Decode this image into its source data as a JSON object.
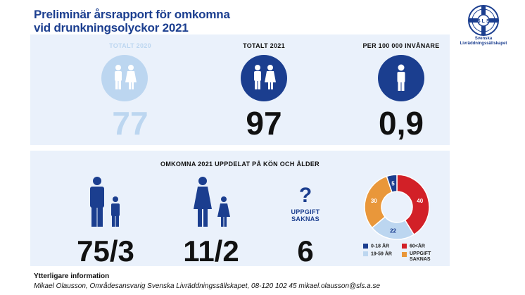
{
  "title_line1": "Preliminär årsrapport för omkomna",
  "title_line2": "vid drunkningsolyckor 2021",
  "logo": {
    "text_line1": "Svenska",
    "text_line2": "Livräddningssällskapet",
    "letters": [
      "S",
      "L",
      "S"
    ]
  },
  "stats": [
    {
      "label": "TOTALT 2020",
      "value": "77",
      "color": "#bcd6f0"
    },
    {
      "label": "TOTALT 2021",
      "value": "97",
      "color": "#1b3e8f"
    },
    {
      "label": "PER 100 000 INVÅNARE",
      "value": "0,9",
      "color": "#1b3e8f"
    }
  ],
  "section2": {
    "heading": "OMKOMNA 2021 UPPDELAT PÅ KÖN OCH ÅLDER",
    "men": "75/3",
    "women": "11/2",
    "unknown_label_line1": "UPPGIFT",
    "unknown_label_line2": "SAKNAS",
    "unknown_value": "6"
  },
  "chart_data": {
    "type": "pie",
    "categories": [
      "0-18 ÅR",
      "60<ÅR",
      "19-59 ÅR",
      "UPPGIFT SAKNAS"
    ],
    "values": [
      5,
      40,
      22,
      30
    ],
    "colors": [
      "#1b3e8f",
      "#d22027",
      "#bcd6f0",
      "#e9973a"
    ],
    "legend_position": "bottom"
  },
  "footer": {
    "heading": "Ytterligare information",
    "contact": "Mikael Olausson, Områdesansvarig Svenska Livräddningssällskapet, 08-120 102 45 mikael.olausson@sls.a.se"
  }
}
